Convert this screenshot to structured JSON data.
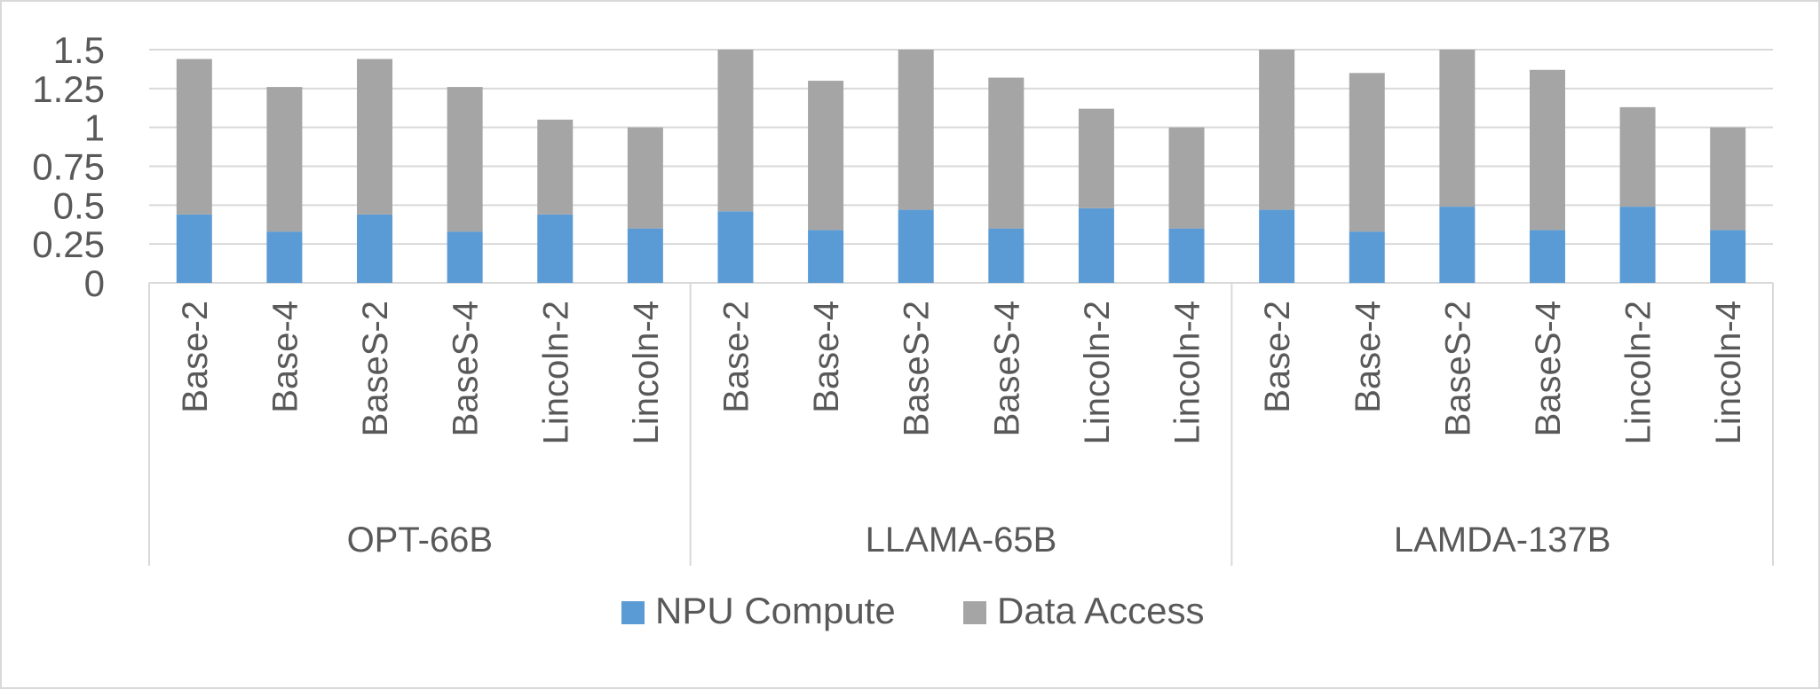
{
  "chart_data": {
    "type": "bar",
    "stacked": true,
    "yticks": [
      "0",
      "0.25",
      "0.5",
      "0.75",
      "1",
      "1.25",
      "1.5"
    ],
    "ylim": [
      0,
      1.5
    ],
    "grid": true,
    "legend_position": "bottom",
    "groups": [
      {
        "name": "OPT-66B",
        "categories": [
          "Base-2",
          "Base-4",
          "BaseS-2",
          "BaseS-4",
          "Lincoln-2",
          "Lincoln-4"
        ],
        "npu_compute": [
          0.44,
          0.33,
          0.44,
          0.33,
          0.44,
          0.35
        ],
        "totals": [
          1.44,
          1.26,
          1.44,
          1.26,
          1.05,
          1.0
        ]
      },
      {
        "name": "LLAMA-65B",
        "categories": [
          "Base-2",
          "Base-4",
          "BaseS-2",
          "BaseS-4",
          "Lincoln-2",
          "Lincoln-4"
        ],
        "npu_compute": [
          0.46,
          0.34,
          0.47,
          0.35,
          0.48,
          0.35
        ],
        "totals": [
          1.5,
          1.3,
          1.5,
          1.32,
          1.12,
          1.0
        ]
      },
      {
        "name": "LAMDA-137B",
        "categories": [
          "Base-2",
          "Base-4",
          "BaseS-2",
          "BaseS-4",
          "Lincoln-2",
          "Lincoln-4"
        ],
        "npu_compute": [
          0.47,
          0.33,
          0.49,
          0.34,
          0.49,
          0.34
        ],
        "totals": [
          1.5,
          1.35,
          1.5,
          1.37,
          1.13,
          1.0
        ]
      }
    ],
    "series": [
      {
        "name": "NPU Compute",
        "color": "#5b9bd5"
      },
      {
        "name": "Data Access",
        "color": "#a5a5a5"
      }
    ]
  }
}
